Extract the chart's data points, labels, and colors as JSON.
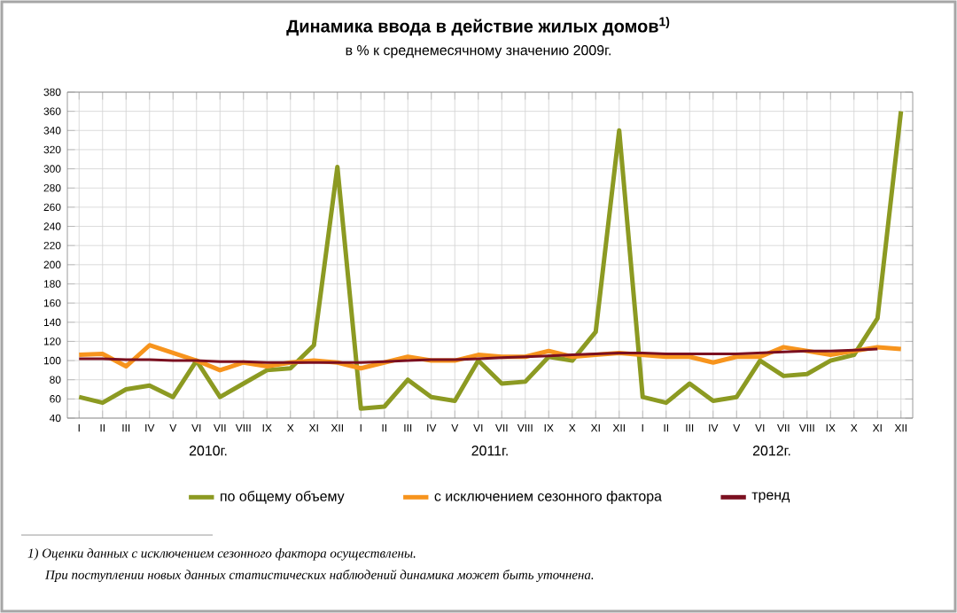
{
  "chart_data": {
    "type": "line",
    "title": "Динамика ввода в действие жилых домов$^{1)}$",
    "subtitle": "в % к среднемесячному значению 2009г.",
    "categories": [
      "I",
      "II",
      "III",
      "IV",
      "V",
      "VI",
      "VII",
      "VIII",
      "IX",
      "X",
      "XI",
      "XII",
      "I",
      "II",
      "III",
      "IV",
      "V",
      "VI",
      "VII",
      "VIII",
      "IX",
      "X",
      "XI",
      "XII",
      "I",
      "II",
      "III",
      "IV",
      "V",
      "VI",
      "VII",
      "VIII",
      "IX",
      "X",
      "XI",
      "XII"
    ],
    "series": [
      {
        "name": "по общему объему",
        "color": "#8c9a22",
        "values": [
          62,
          56,
          70,
          74,
          62,
          100,
          62,
          76,
          90,
          92,
          116,
          302,
          50,
          52,
          80,
          62,
          58,
          100,
          76,
          78,
          104,
          100,
          130,
          340,
          62,
          56,
          76,
          58,
          62,
          100,
          84,
          86,
          100,
          106,
          144,
          360
        ]
      },
      {
        "name": "с исключением сезонного фактора",
        "color": "#f7941d",
        "values": [
          106,
          107,
          94,
          116,
          108,
          100,
          90,
          98,
          94,
          98,
          100,
          98,
          92,
          98,
          104,
          100,
          100,
          106,
          104,
          104,
          110,
          104,
          106,
          108,
          106,
          104,
          104,
          98,
          104,
          104,
          114,
          110,
          106,
          110,
          114,
          112
        ]
      },
      {
        "name": "тренд",
        "color": "#7b1020",
        "values": [
          102,
          102,
          101,
          101,
          100,
          100,
          99,
          99,
          98,
          98,
          98,
          98,
          98,
          99,
          100,
          101,
          101,
          102,
          103,
          104,
          105,
          106,
          107,
          108,
          108,
          107,
          107,
          107,
          107,
          108,
          109,
          110,
          110,
          111,
          112,
          null
        ]
      }
    ],
    "ylim": [
      40,
      380
    ],
    "yticks": [
      40,
      60,
      80,
      100,
      120,
      140,
      160,
      180,
      200,
      220,
      240,
      260,
      280,
      300,
      320,
      340,
      360,
      380
    ],
    "grid": true,
    "legend": "bottom",
    "marker": "none",
    "line_style": "solid",
    "annotations": [
      "2010г.",
      "2011г.",
      "2012г.",
      "1) Оценки данных с исключением сезонного фактора осуществлены.",
      "При поступлении новых данных статистических наблюдений динамика может быть уточнена."
    ]
  }
}
